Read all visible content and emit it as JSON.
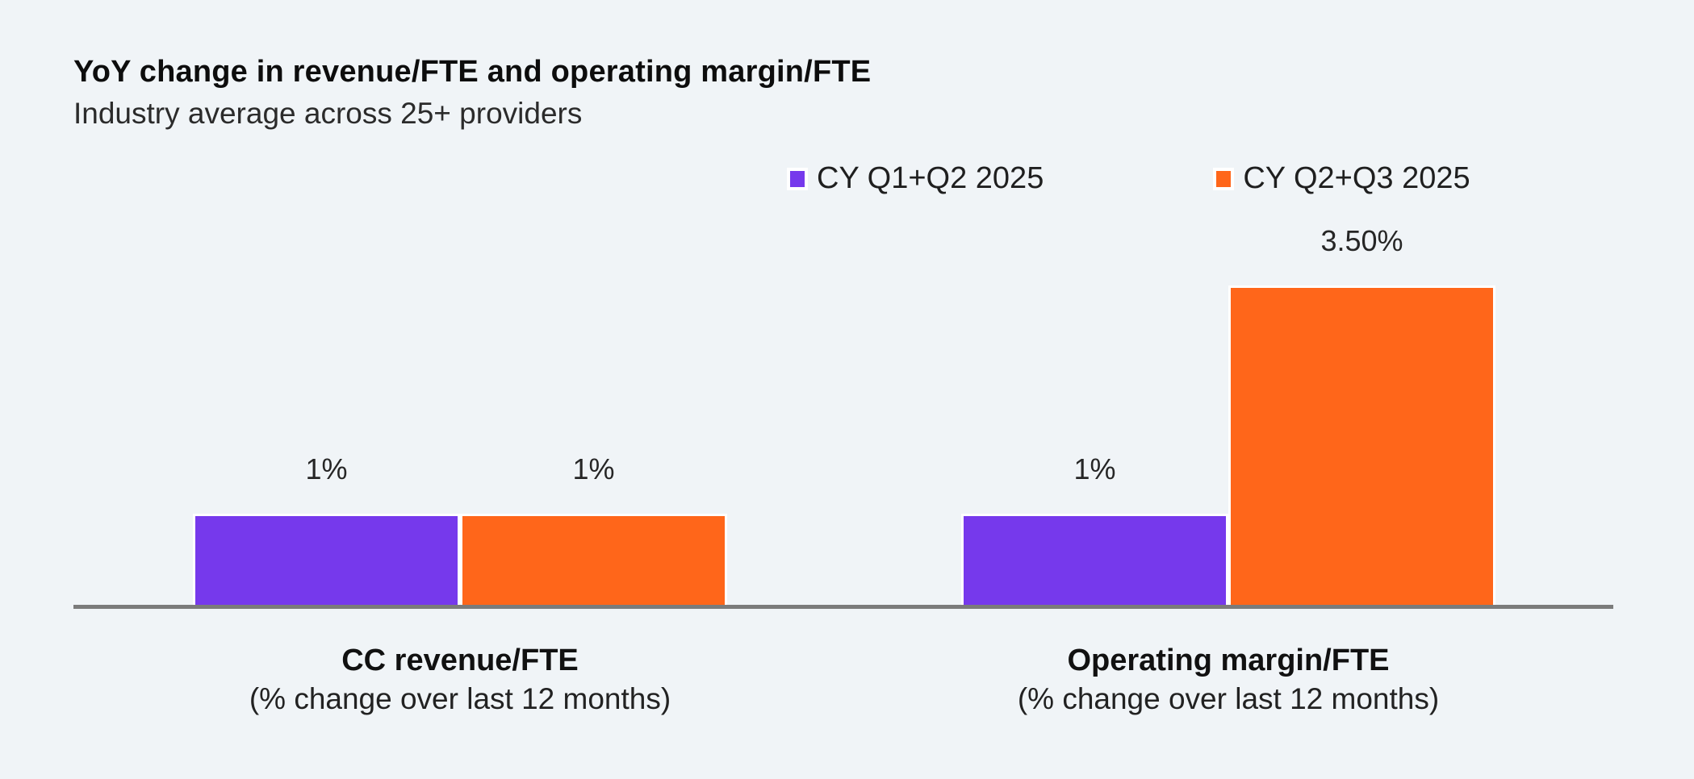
{
  "header": {
    "title": "YoY change in revenue/FTE and operating margin/FTE",
    "subtitle": "Industry average across 25+ providers"
  },
  "style": {
    "background_color": "#F0F4F7",
    "axis_color": "#7B7B7B",
    "purple": "#7639EC",
    "orange": "#FF661A",
    "bar_border_color": "#FFFFFF",
    "text_color": "#262626"
  },
  "chart_data": {
    "type": "bar",
    "title": "YoY change in revenue/FTE and operating margin/FTE",
    "subtitle": "Industry average across 25+ providers",
    "categories": [
      "CC revenue/FTE",
      "Operating margin/FTE"
    ],
    "category_sublabels": [
      "(% change over last 12 months)",
      "(% change over last 12 months)"
    ],
    "series": [
      {
        "name": "CY Q1+Q2 2025",
        "color": "#7639EC",
        "values": [
          1,
          1
        ],
        "labels": [
          "1%",
          "1%"
        ]
      },
      {
        "name": "CY Q2+Q3 2025",
        "color": "#FF661A",
        "values": [
          1,
          3.5
        ],
        "labels": [
          "1%",
          "3.50%"
        ]
      }
    ],
    "xlabel": "",
    "ylabel": "",
    "ylim": [
      0,
      3.5
    ],
    "grid": false,
    "y_axis_visible": false,
    "legend_position": "top",
    "value_labels_visible": true
  }
}
